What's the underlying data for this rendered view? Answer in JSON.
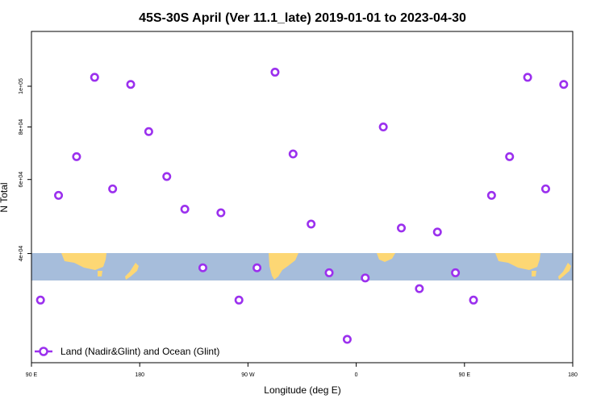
{
  "chart_data": {
    "type": "scatter",
    "title": "45S-30S April (Ver 11.1_late)   2019-01-01 to 2023-04-30",
    "xlabel": "Longitude (deg E)",
    "ylabel": "N Total",
    "x_ticks": [
      "90 E",
      "180",
      "90 W",
      "0",
      "90 E",
      "180"
    ],
    "x_tick_values": [
      90,
      180,
      270,
      360,
      450,
      540
    ],
    "xlim": [
      90,
      540
    ],
    "y_scale": "log",
    "y_ticks": [
      "4e+04",
      "6e+04",
      "8e+04",
      "1e+05"
    ],
    "y_tick_values": [
      40000,
      60000,
      80000,
      100000
    ],
    "ylim": [
      22000,
      135000
    ],
    "legend": {
      "label": "Land (Nadir&Glint) and Ocean (Glint)",
      "position": "bottom-left"
    },
    "marker_color": "#9b30ee",
    "map_colors": {
      "ocean": "#a6bddb",
      "land": "#fdd774"
    },
    "series": [
      {
        "name": "Land (Nadir&Glint) and Ocean (Glint)",
        "x": [
          97.5,
          112.5,
          127.5,
          142.5,
          157.5,
          172.5,
          187.5,
          202.5,
          217.5,
          232.5,
          247.5,
          262.5,
          277.5,
          292.5,
          307.5,
          322.5,
          337.5,
          352.5,
          367.5,
          382.5,
          397.5,
          412.5,
          427.5,
          442.5,
          457.5,
          472.5,
          487.5,
          502.5,
          517.5,
          532.5
        ],
        "y": [
          31000,
          55000,
          68000,
          105000,
          57000,
          101000,
          78000,
          61000,
          51000,
          37000,
          50000,
          31000,
          37000,
          108000,
          69000,
          47000,
          36000,
          25000,
          35000,
          80000,
          46000,
          33000,
          45000,
          36000,
          31000,
          55000,
          68000,
          105000,
          57000,
          101000
        ]
      }
    ]
  }
}
